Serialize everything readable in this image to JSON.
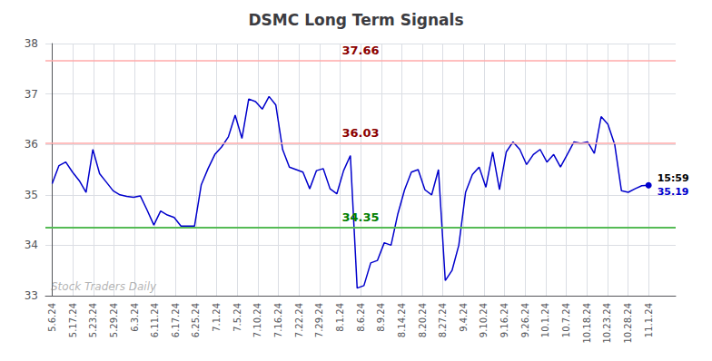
{
  "chart_data": {
    "type": "line",
    "title": "DSMC Long Term Signals",
    "x": [
      0,
      1,
      2,
      3,
      4,
      5,
      6,
      7,
      8,
      9,
      10,
      11,
      12,
      13,
      14,
      15,
      16,
      17,
      18,
      19,
      20,
      21,
      22,
      23,
      24,
      25,
      26,
      27,
      28,
      29,
      30,
      31,
      32,
      33,
      34,
      35,
      36,
      37,
      38,
      39,
      40,
      41,
      42,
      43,
      44,
      45,
      46,
      47,
      48,
      49,
      50,
      51,
      52,
      53,
      54,
      55,
      56,
      57,
      58,
      59,
      60,
      61,
      62,
      63,
      64,
      65,
      66,
      67,
      68,
      69,
      70,
      71,
      72,
      73,
      74,
      75,
      76,
      77,
      78,
      79,
      80,
      81,
      82,
      83,
      84,
      85,
      86,
      87,
      88
    ],
    "values": [
      35.22,
      35.58,
      35.65,
      35.45,
      35.28,
      35.05,
      35.9,
      35.42,
      35.25,
      35.08,
      35.0,
      34.97,
      34.95,
      34.98,
      34.7,
      34.4,
      34.68,
      34.6,
      34.55,
      34.38,
      34.38,
      34.38,
      35.2,
      35.52,
      35.8,
      35.95,
      36.15,
      36.58,
      36.12,
      36.9,
      36.85,
      36.7,
      36.95,
      36.78,
      35.9,
      35.55,
      35.5,
      35.45,
      35.12,
      35.48,
      35.52,
      35.12,
      35.02,
      35.48,
      35.78,
      33.15,
      33.2,
      33.65,
      33.7,
      34.05,
      34.0,
      34.62,
      35.1,
      35.45,
      35.5,
      35.1,
      35.0,
      35.5,
      33.3,
      33.5,
      34.0,
      35.05,
      35.4,
      35.55,
      35.15,
      35.85,
      35.1,
      35.85,
      36.05,
      35.9,
      35.6,
      35.8,
      35.9,
      35.65,
      35.8,
      35.55,
      35.8,
      36.05,
      36.02,
      36.05,
      35.82,
      36.55,
      36.4,
      36.0,
      35.08,
      35.05,
      35.12,
      35.18,
      35.19
    ],
    "color": "#0000cc",
    "xlim": [
      -1,
      92
    ],
    "xticks": [
      {
        "value": 0,
        "label": "5.6.24"
      },
      {
        "value": 3.0344827586,
        "label": "5.17.24"
      },
      {
        "value": 6.0689655172,
        "label": "5.23.24"
      },
      {
        "value": 9.1034482759,
        "label": "5.29.24"
      },
      {
        "value": 12.1379310345,
        "label": "6.3.24"
      },
      {
        "value": 15.1724137931,
        "label": "6.11.24"
      },
      {
        "value": 18.2068965517,
        "label": "6.17.24"
      },
      {
        "value": 21.2413793103,
        "label": "6.25.24"
      },
      {
        "value": 24.275862069,
        "label": "7.1.24"
      },
      {
        "value": 27.3103448276,
        "label": "7.5.24"
      },
      {
        "value": 30.3448275862,
        "label": "7.10.24"
      },
      {
        "value": 33.3793103448,
        "label": "7.16.24"
      },
      {
        "value": 36.4137931034,
        "label": "7.22.24"
      },
      {
        "value": 39.4482758621,
        "label": "7.29.24"
      },
      {
        "value": 42.4827586207,
        "label": "8.1.24"
      },
      {
        "value": 45.5172413793,
        "label": "8.6.24"
      },
      {
        "value": 48.5517241379,
        "label": "8.9.24"
      },
      {
        "value": 51.5862068966,
        "label": "8.14.24"
      },
      {
        "value": 54.6206896552,
        "label": "8.20.24"
      },
      {
        "value": 57.6551724138,
        "label": "8.27.24"
      },
      {
        "value": 60.6896551724,
        "label": "9.4.24"
      },
      {
        "value": 63.724137931,
        "label": "9.10.24"
      },
      {
        "value": 66.7586206897,
        "label": "9.16.24"
      },
      {
        "value": 69.7931034483,
        "label": "9.26.24"
      },
      {
        "value": 72.8275862069,
        "label": "10.1.24"
      },
      {
        "value": 75.8620689655,
        "label": "10.7.24"
      },
      {
        "value": 78.8965517241,
        "label": "10.18.24"
      },
      {
        "value": 81.9310344828,
        "label": "10.23.24"
      },
      {
        "value": 84.9655172414,
        "label": "10.28.24"
      },
      {
        "value": 88,
        "label": "11.1.24"
      }
    ],
    "ylim": [
      33,
      38
    ],
    "yticks": [
      33,
      34,
      35,
      36,
      37,
      38
    ],
    "grid": true,
    "hlines": [
      {
        "value": 37.66,
        "label": "37.66",
        "color": "#ffaaaa",
        "label_color": "darkred"
      },
      {
        "value": 36.03,
        "label": "36.03",
        "color": "#ffaaaa",
        "label_color": "darkred"
      },
      {
        "value": 34.35,
        "label": "34.35",
        "color": "#55bb55",
        "label_color": "green"
      }
    ],
    "end_labels": [
      "15:59",
      "35.19"
    ],
    "watermark": "Stock Traders Daily"
  }
}
